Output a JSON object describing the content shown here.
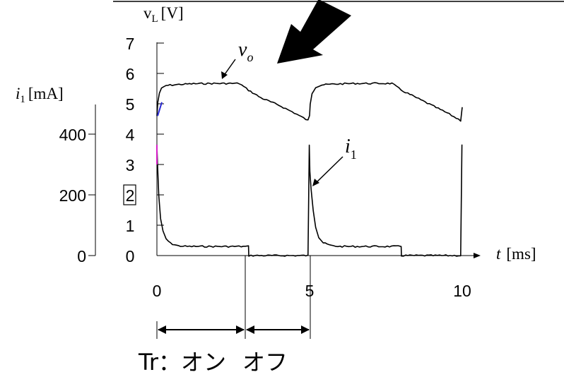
{
  "chart_data": {
    "type": "line",
    "title": "",
    "x_axis": {
      "label_symbol": "t",
      "label_unit": "[ms]",
      "ticks": [
        0,
        5,
        10
      ],
      "range": [
        0,
        10
      ]
    },
    "left_axis": {
      "label_symbol": "i",
      "label_subscript": "1",
      "label_unit": "[mA]",
      "ticks": [
        0,
        200,
        400
      ],
      "range": [
        0,
        500
      ]
    },
    "right_axis": {
      "label_symbol": "v",
      "label_subscript": "L",
      "label_unit": "[V]",
      "ticks": [
        0,
        1,
        2,
        3,
        4,
        5,
        6,
        7
      ],
      "boxed_tick": 2,
      "range": [
        0,
        7
      ]
    },
    "series": [
      {
        "name": "vo",
        "axis": "right",
        "x": [
          0,
          0.03,
          0.08,
          0.15,
          0.3,
          0.5,
          0.8,
          1.2,
          1.8,
          2.4,
          2.7,
          3.0,
          3.4,
          4.0,
          4.5,
          4.95,
          5.0,
          5.02,
          5.08,
          5.2,
          5.4,
          5.8,
          6.5,
          7.2,
          7.7,
          8.0,
          8.5,
          9.0,
          9.5,
          9.95,
          10.0
        ],
        "values": [
          4.6,
          5.05,
          5.35,
          5.5,
          5.6,
          5.62,
          5.64,
          5.66,
          5.67,
          5.67,
          5.67,
          5.45,
          5.2,
          4.95,
          4.7,
          4.45,
          4.6,
          5.0,
          5.35,
          5.55,
          5.62,
          5.65,
          5.67,
          5.67,
          5.67,
          5.45,
          5.2,
          4.95,
          4.7,
          4.45,
          4.9
        ]
      },
      {
        "name": "i1",
        "axis": "left",
        "x": [
          0,
          0.02,
          0.06,
          0.12,
          0.2,
          0.3,
          0.45,
          0.7,
          1.0,
          2.9,
          3.0,
          3.01,
          4.95,
          4.97,
          4.99,
          5.01,
          5.05,
          5.12,
          5.2,
          5.3,
          5.45,
          5.7,
          6.0,
          7.9,
          8.0,
          8.01,
          9.95,
          9.97,
          9.99
        ],
        "values": [
          360,
          300,
          200,
          120,
          80,
          55,
          40,
          32,
          30,
          30,
          30,
          0,
          0,
          180,
          365,
          280,
          220,
          150,
          95,
          60,
          42,
          33,
          30,
          30,
          30,
          0,
          0,
          180,
          365
        ]
      }
    ],
    "annotations": [
      {
        "text": "v",
        "subscript": "o",
        "x": 2.1,
        "y_axis": "right",
        "y": 5.7
      },
      {
        "text": "i",
        "subscript": "1",
        "x": 5.0,
        "y_axis": "left",
        "y": 240
      }
    ],
    "timing": {
      "segments": [
        {
          "label": "Tr：オン",
          "from": 0,
          "to": 3
        },
        {
          "label": "オフ",
          "from": 3,
          "to": 5
        }
      ],
      "label_prefix": "Tr：",
      "on_label": "オン",
      "off_label": "オフ"
    }
  }
}
